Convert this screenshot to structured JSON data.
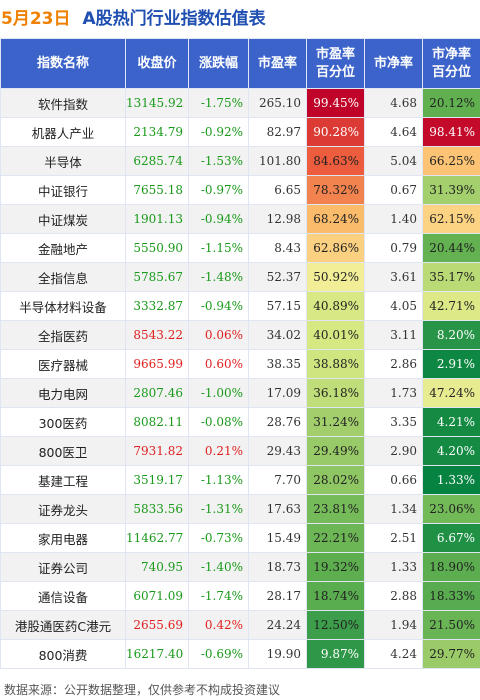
{
  "title": {
    "date": "5月23日",
    "text": "A股热门行业指数估值表"
  },
  "table": {
    "headers": [
      "指数名称",
      "收盘价",
      "涨跌幅",
      "市盈率",
      "市盈率\n百分位",
      "市净率",
      "市净率\n百分位"
    ],
    "rows": [
      {
        "name": "软件指数",
        "close": "13145.92",
        "change": "-1.75%",
        "pe": "265.10",
        "pe_pct": "99.45%",
        "pb": "4.68",
        "pb_pct": "20.12%"
      },
      {
        "name": "机器人产业",
        "close": "2134.79",
        "change": "-0.92%",
        "pe": "82.97",
        "pe_pct": "90.28%",
        "pb": "4.64",
        "pb_pct": "98.41%"
      },
      {
        "name": "半导体",
        "close": "6285.74",
        "change": "-1.53%",
        "pe": "101.80",
        "pe_pct": "84.63%",
        "pb": "5.04",
        "pb_pct": "66.25%"
      },
      {
        "name": "中证银行",
        "close": "7655.18",
        "change": "-0.97%",
        "pe": "6.65",
        "pe_pct": "78.32%",
        "pb": "0.67",
        "pb_pct": "31.39%"
      },
      {
        "name": "中证煤炭",
        "close": "1901.13",
        "change": "-0.94%",
        "pe": "12.98",
        "pe_pct": "68.24%",
        "pb": "1.40",
        "pb_pct": "62.15%"
      },
      {
        "name": "金融地产",
        "close": "5550.90",
        "change": "-1.15%",
        "pe": "8.43",
        "pe_pct": "62.86%",
        "pb": "0.79",
        "pb_pct": "20.44%"
      },
      {
        "name": "全指信息",
        "close": "5785.67",
        "change": "-1.48%",
        "pe": "52.37",
        "pe_pct": "50.92%",
        "pb": "3.61",
        "pb_pct": "35.17%"
      },
      {
        "name": "半导体材料设备",
        "close": "3332.87",
        "change": "-0.94%",
        "pe": "57.15",
        "pe_pct": "40.89%",
        "pb": "4.05",
        "pb_pct": "42.71%"
      },
      {
        "name": "全指医药",
        "close": "8543.22",
        "change": "0.06%",
        "pe": "34.02",
        "pe_pct": "40.01%",
        "pb": "3.11",
        "pb_pct": "8.20%"
      },
      {
        "name": "医疗器械",
        "close": "9665.99",
        "change": "0.60%",
        "pe": "38.35",
        "pe_pct": "38.88%",
        "pb": "2.86",
        "pb_pct": "2.91%"
      },
      {
        "name": "电力电网",
        "close": "2807.46",
        "change": "-1.00%",
        "pe": "17.09",
        "pe_pct": "36.18%",
        "pb": "1.73",
        "pb_pct": "47.24%"
      },
      {
        "name": "300医药",
        "close": "8082.11",
        "change": "-0.08%",
        "pe": "28.76",
        "pe_pct": "31.24%",
        "pb": "3.35",
        "pb_pct": "4.21%"
      },
      {
        "name": "800医卫",
        "close": "7931.82",
        "change": "0.21%",
        "pe": "29.43",
        "pe_pct": "29.49%",
        "pb": "2.90",
        "pb_pct": "4.20%"
      },
      {
        "name": "基建工程",
        "close": "3519.17",
        "change": "-1.13%",
        "pe": "7.70",
        "pe_pct": "28.02%",
        "pb": "0.66",
        "pb_pct": "1.33%"
      },
      {
        "name": "证券龙头",
        "close": "5833.56",
        "change": "-1.31%",
        "pe": "17.63",
        "pe_pct": "23.81%",
        "pb": "1.34",
        "pb_pct": "23.06%"
      },
      {
        "name": "家用电器",
        "close": "11462.77",
        "change": "-0.73%",
        "pe": "15.49",
        "pe_pct": "22.21%",
        "pb": "2.51",
        "pb_pct": "6.67%"
      },
      {
        "name": "证券公司",
        "close": "740.95",
        "change": "-1.40%",
        "pe": "18.73",
        "pe_pct": "19.32%",
        "pb": "1.33",
        "pb_pct": "18.90%"
      },
      {
        "name": "通信设备",
        "close": "6071.09",
        "change": "-1.74%",
        "pe": "28.17",
        "pe_pct": "18.74%",
        "pb": "2.88",
        "pb_pct": "18.33%"
      },
      {
        "name": "港股通医药C港元",
        "close": "2655.69",
        "change": "0.42%",
        "pe": "24.24",
        "pe_pct": "12.50%",
        "pb": "1.94",
        "pb_pct": "21.50%"
      },
      {
        "name": "800消费",
        "close": "16217.40",
        "change": "-0.69%",
        "pe": "19.90",
        "pe_pct": "9.87%",
        "pb": "4.24",
        "pb_pct": "29.77%"
      }
    ]
  },
  "colors": {
    "header_bg": "#3b63c9",
    "title_date": "#f08000",
    "title_text": "#1f4fb0",
    "up": "#e02020",
    "down": "#1a9a1a"
  },
  "footer": "数据来源：公开数据整理，仅供参考不构成投资建议"
}
